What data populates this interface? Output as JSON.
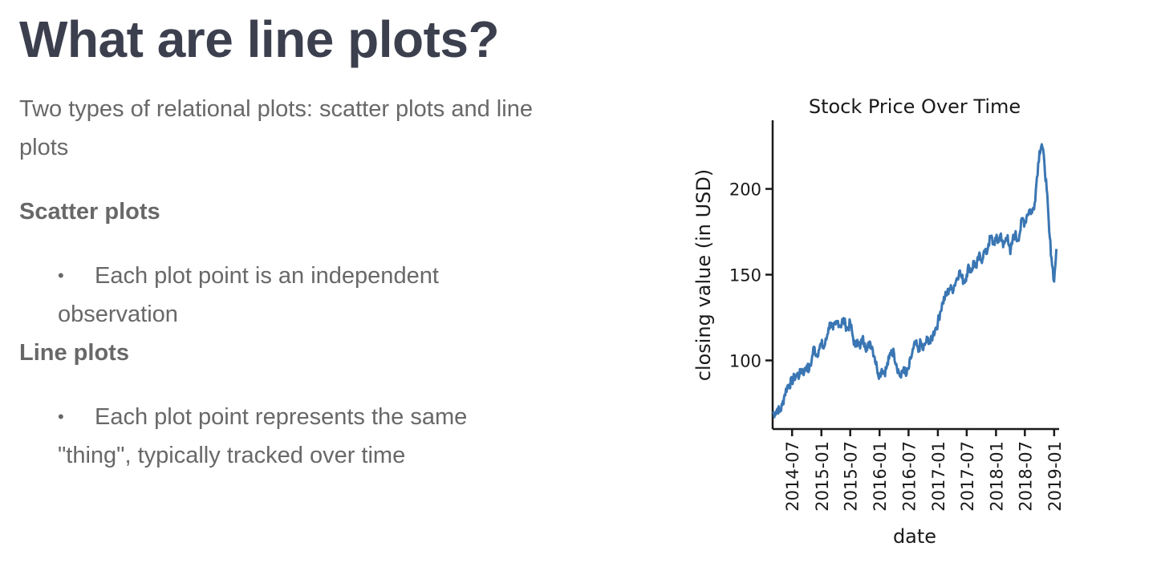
{
  "slide": {
    "title": "What are line plots?",
    "intro": "Two types of relational plots: scatter plots and line plots",
    "sections": [
      {
        "heading": "Scatter plots",
        "bullets": [
          "Each plot point is an independent observation"
        ]
      },
      {
        "heading": "Line plots",
        "bullets": [
          "Each plot point represents the same \"thing\", typically tracked over time"
        ]
      }
    ],
    "bullet_glyph": "•"
  },
  "chart_data": {
    "type": "line",
    "title": "Stock Price Over Time",
    "xlabel": "date",
    "ylabel": "closing value (in USD)",
    "xlim": [
      "2014-03-01",
      "2019-02-01"
    ],
    "ylim": [
      60,
      240
    ],
    "x_ticks": [
      "2014-07",
      "2015-01",
      "2015-07",
      "2016-01",
      "2016-07",
      "2017-01",
      "2017-07",
      "2018-01",
      "2018-07",
      "2019-01"
    ],
    "y_ticks": [
      100,
      150,
      200
    ],
    "grid": false,
    "color": "#3a76b3",
    "series": [
      {
        "x": [
          "2014-03-01",
          "2014-03-15",
          "2014-04-01",
          "2014-04-15",
          "2014-05-01",
          "2014-05-15",
          "2014-06-01",
          "2014-06-15",
          "2014-07-01",
          "2014-07-15",
          "2014-08-01",
          "2014-08-15",
          "2014-09-01",
          "2014-09-15",
          "2014-10-01",
          "2014-10-15",
          "2014-11-01",
          "2014-11-15",
          "2014-12-01",
          "2014-12-15",
          "2015-01-01",
          "2015-01-15",
          "2015-02-01",
          "2015-02-15",
          "2015-03-01",
          "2015-03-15",
          "2015-04-01",
          "2015-04-15",
          "2015-05-01",
          "2015-05-15",
          "2015-06-01",
          "2015-06-15",
          "2015-07-01",
          "2015-07-15",
          "2015-08-01",
          "2015-08-15",
          "2015-09-01",
          "2015-09-15",
          "2015-10-01",
          "2015-10-15",
          "2015-11-01",
          "2015-11-15",
          "2015-12-01",
          "2015-12-15",
          "2016-01-01",
          "2016-01-15",
          "2016-02-01",
          "2016-02-15",
          "2016-03-01",
          "2016-03-15",
          "2016-04-01",
          "2016-04-15",
          "2016-05-01",
          "2016-05-15",
          "2016-06-01",
          "2016-06-15",
          "2016-07-01",
          "2016-07-15",
          "2016-08-01",
          "2016-08-15",
          "2016-09-01",
          "2016-09-15",
          "2016-10-01",
          "2016-10-15",
          "2016-11-01",
          "2016-11-15",
          "2016-12-01",
          "2016-12-15",
          "2017-01-01",
          "2017-01-15",
          "2017-02-01",
          "2017-02-15",
          "2017-03-01",
          "2017-03-15",
          "2017-04-01",
          "2017-04-15",
          "2017-05-01",
          "2017-05-15",
          "2017-06-01",
          "2017-06-15",
          "2017-07-01",
          "2017-07-15",
          "2017-08-01",
          "2017-08-15",
          "2017-09-01",
          "2017-09-15",
          "2017-10-01",
          "2017-10-15",
          "2017-11-01",
          "2017-11-15",
          "2017-12-01",
          "2017-12-15",
          "2018-01-01",
          "2018-01-15",
          "2018-02-01",
          "2018-02-15",
          "2018-03-01",
          "2018-03-15",
          "2018-04-01",
          "2018-04-15",
          "2018-05-01",
          "2018-05-15",
          "2018-06-01",
          "2018-06-15",
          "2018-07-01",
          "2018-07-15",
          "2018-08-01",
          "2018-08-15",
          "2018-09-01",
          "2018-09-15",
          "2018-10-01",
          "2018-10-15",
          "2018-11-01",
          "2018-11-15",
          "2018-12-01",
          "2018-12-15",
          "2019-01-01",
          "2019-01-15"
        ],
        "values": [
          70,
          69,
          72,
          70,
          74,
          80,
          85,
          86,
          88,
          90,
          92,
          91,
          95,
          93,
          97,
          94,
          100,
          108,
          103,
          106,
          110,
          107,
          112,
          119,
          122,
          118,
          121,
          123,
          120,
          124,
          121,
          118,
          122,
          115,
          108,
          112,
          107,
          113,
          110,
          106,
          111,
          108,
          102,
          96,
          91,
          95,
          93,
          96,
          101,
          106,
          104,
          98,
          93,
          90,
          96,
          91,
          95,
          101,
          107,
          110,
          105,
          111,
          106,
          110,
          113,
          110,
          115,
          118,
          122,
          128,
          134,
          137,
          139,
          142,
          141,
          144,
          148,
          152,
          148,
          146,
          150,
          155,
          152,
          158,
          154,
          161,
          158,
          163,
          162,
          168,
          172,
          168,
          171,
          169,
          174,
          166,
          170,
          173,
          162,
          170,
          174,
          170,
          175,
          183,
          180,
          185,
          188,
          186,
          192,
          207,
          222,
          226,
          215,
          200,
          175,
          160,
          146,
          165
        ]
      }
    ]
  }
}
